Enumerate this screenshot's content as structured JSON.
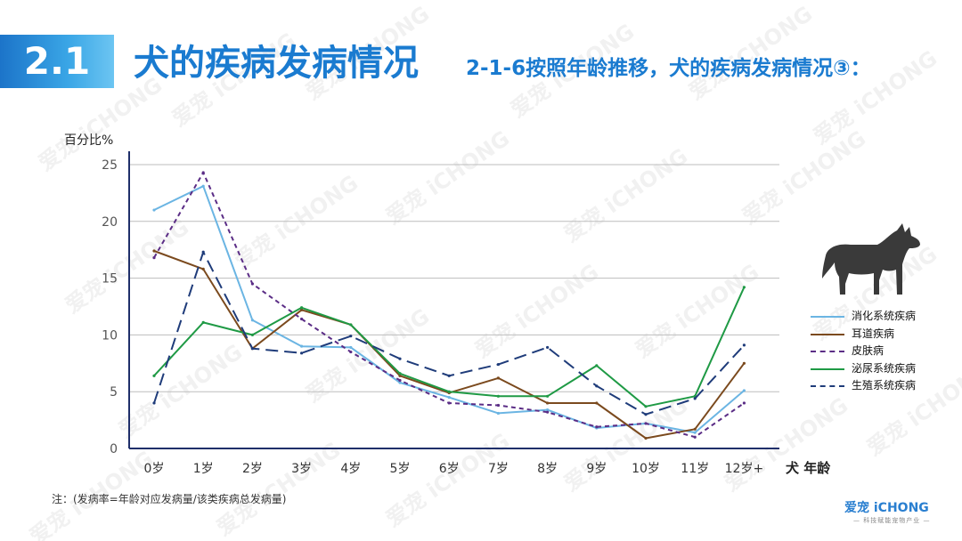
{
  "header": {
    "section_number": "2.1",
    "title": "犬的疾病发病情况",
    "subtitle": "2-1-6按照年龄推移，犬的疾病发病情况③："
  },
  "axis_text": {
    "y_unit": "百分比%",
    "x_unit": "犬 年龄"
  },
  "note": "注：(发病率=年龄对应发病量/该类疾病总发病量)",
  "logo": {
    "name": "爱宠 iCHONG",
    "tagline": "— 科技赋能宠物产业 —"
  },
  "watermark": "爱宠 iCHONG",
  "chart_data": {
    "type": "line",
    "categories": [
      "0岁",
      "1岁",
      "2岁",
      "3岁",
      "4岁",
      "5岁",
      "6岁",
      "7岁",
      "8岁",
      "9岁",
      "10岁",
      "11岁",
      "12岁+"
    ],
    "ylim": [
      0,
      25
    ],
    "yticks": [
      0,
      5,
      10,
      15,
      20,
      25
    ],
    "grid": true,
    "legend_position": "right",
    "series": [
      {
        "name": "消化系统疾病",
        "color": "#6bb5e3",
        "dash": "solid",
        "values": [
          21.0,
          23.1,
          11.3,
          9.0,
          8.9,
          5.8,
          4.5,
          3.1,
          3.4,
          1.8,
          2.2,
          1.4,
          5.1
        ]
      },
      {
        "name": "耳道疾病",
        "color": "#7b4a1e",
        "dash": "solid",
        "values": [
          17.4,
          15.8,
          8.8,
          12.2,
          10.9,
          6.4,
          4.9,
          6.2,
          4.0,
          4.0,
          0.9,
          1.7,
          7.5
        ]
      },
      {
        "name": "皮肤病",
        "color": "#5b2d86",
        "dash": "short",
        "values": [
          16.8,
          24.3,
          14.5,
          11.4,
          8.5,
          6.0,
          4.0,
          3.8,
          3.2,
          1.9,
          2.2,
          1.0,
          4.0
        ]
      },
      {
        "name": "泌尿系统疾病",
        "color": "#1f9a45",
        "dash": "solid",
        "values": [
          6.4,
          11.1,
          10.0,
          12.4,
          10.9,
          6.6,
          5.0,
          4.6,
          4.6,
          7.3,
          3.7,
          4.6,
          14.2
        ]
      },
      {
        "name": "生殖系统疾病",
        "color": "#1f3c7a",
        "dash": "long",
        "values": [
          4.0,
          17.3,
          8.8,
          8.4,
          9.9,
          7.9,
          6.4,
          7.4,
          8.9,
          5.5,
          3.0,
          4.4,
          9.1
        ]
      }
    ]
  }
}
